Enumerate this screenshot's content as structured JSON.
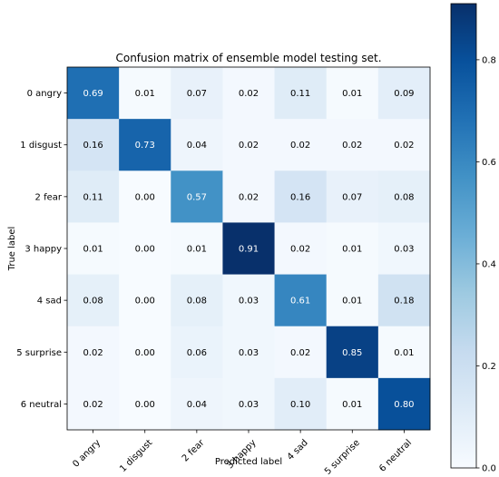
{
  "chart_data": {
    "type": "heatmap",
    "title": "Confusion matrix of ensemble model testing set.",
    "xlabel": "Predicted label",
    "ylabel": "True label",
    "x_categories": [
      "0 angry",
      "1 disgust",
      "2 fear",
      "3 happy",
      "4 sad",
      "5 surprise",
      "6 neutral"
    ],
    "y_categories": [
      "0 angry",
      "1 disgust",
      "2 fear",
      "3 happy",
      "4 sad",
      "5 surprise",
      "6 neutral"
    ],
    "values": [
      [
        0.69,
        0.01,
        0.07,
        0.02,
        0.11,
        0.01,
        0.09
      ],
      [
        0.16,
        0.73,
        0.04,
        0.02,
        0.02,
        0.02,
        0.02
      ],
      [
        0.11,
        0.0,
        0.57,
        0.02,
        0.16,
        0.07,
        0.08
      ],
      [
        0.01,
        0.0,
        0.01,
        0.91,
        0.02,
        0.01,
        0.03
      ],
      [
        0.08,
        0.0,
        0.08,
        0.03,
        0.61,
        0.01,
        0.18
      ],
      [
        0.02,
        0.0,
        0.06,
        0.03,
        0.02,
        0.85,
        0.01
      ],
      [
        0.02,
        0.0,
        0.04,
        0.03,
        0.1,
        0.01,
        0.8
      ]
    ],
    "value_labels": [
      [
        "0.69",
        "0.01",
        "0.07",
        "0.02",
        "0.11",
        "0.01",
        "0.09"
      ],
      [
        "0.16",
        "0.73",
        "0.04",
        "0.02",
        "0.02",
        "0.02",
        "0.02"
      ],
      [
        "0.11",
        "0.00",
        "0.57",
        "0.02",
        "0.16",
        "0.07",
        "0.08"
      ],
      [
        "0.01",
        "0.00",
        "0.01",
        "0.91",
        "0.02",
        "0.01",
        "0.03"
      ],
      [
        "0.08",
        "0.00",
        "0.08",
        "0.03",
        "0.61",
        "0.01",
        "0.18"
      ],
      [
        "0.02",
        "0.00",
        "0.06",
        "0.03",
        "0.02",
        "0.85",
        "0.01"
      ],
      [
        "0.02",
        "0.00",
        "0.04",
        "0.03",
        "0.10",
        "0.01",
        "0.80"
      ]
    ],
    "colorbar": {
      "range": [
        0.0,
        0.91
      ],
      "ticks": [
        0.0,
        0.2,
        0.4,
        0.6,
        0.8
      ],
      "tick_labels": [
        "0.0",
        "0.2",
        "0.4",
        "0.6",
        "0.8"
      ]
    },
    "colormap": "Blues",
    "colormap_stops": [
      "#f7fbff",
      "#deebf7",
      "#c6dbef",
      "#9ecae1",
      "#6baed6",
      "#4292c6",
      "#2171b5",
      "#08519c",
      "#08306b"
    ],
    "grid": false,
    "legend": "colorbar-right"
  }
}
